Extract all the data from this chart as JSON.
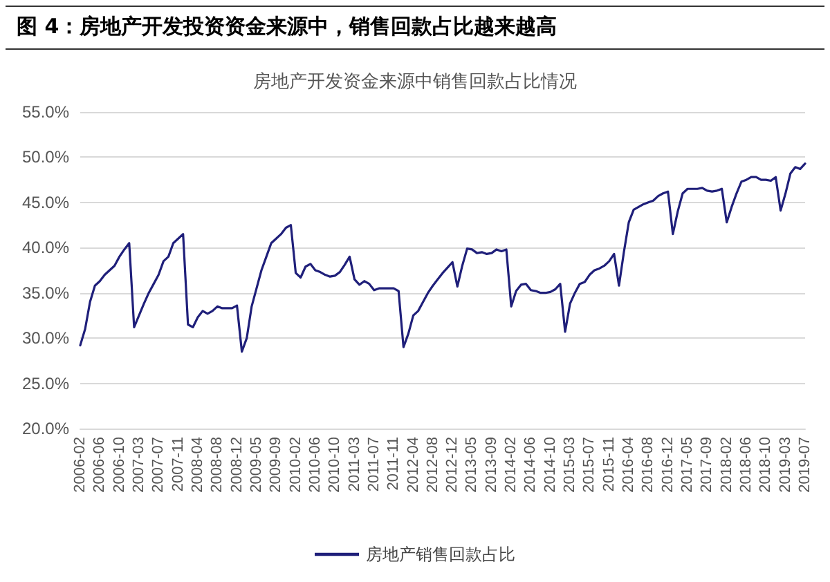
{
  "chart_data": {
    "type": "line",
    "title": "房地产开发资金来源中销售回款占比情况",
    "subtitle": "图 4：房地产开发投资资金来源中，销售回款占比越来越高",
    "categories": [
      "2006-02",
      null,
      null,
      null,
      "2006-06",
      null,
      null,
      null,
      "2006-10",
      null,
      null,
      null,
      "2007-03",
      null,
      null,
      null,
      "2007-07",
      null,
      null,
      null,
      "2007-11",
      null,
      null,
      null,
      "2008-04",
      null,
      null,
      null,
      "2008-08",
      null,
      null,
      null,
      "2008-12",
      null,
      null,
      null,
      "2009-05",
      null,
      null,
      null,
      "2009-09",
      null,
      null,
      null,
      "2010-02",
      null,
      null,
      null,
      "2010-06",
      null,
      null,
      null,
      "2010-10",
      null,
      null,
      null,
      "2011-03",
      null,
      null,
      null,
      "2011-07",
      null,
      null,
      null,
      "2011-11",
      null,
      null,
      null,
      "2012-04",
      null,
      null,
      null,
      "2012-08",
      null,
      null,
      null,
      "2012-12",
      null,
      null,
      null,
      "2013-05",
      null,
      null,
      null,
      "2013-09",
      null,
      null,
      null,
      "2014-02",
      null,
      null,
      null,
      "2014-06",
      null,
      null,
      null,
      "2014-10",
      null,
      null,
      null,
      "2015-03",
      null,
      null,
      null,
      "2015-07",
      null,
      null,
      null,
      "2015-11",
      null,
      null,
      null,
      "2016-04",
      null,
      null,
      null,
      "2016-08",
      null,
      null,
      null,
      "2016-12",
      null,
      null,
      null,
      "2017-05",
      null,
      null,
      null,
      "2017-09",
      null,
      null,
      null,
      "2018-02",
      null,
      null,
      null,
      "2018-06",
      null,
      null,
      null,
      "2018-10",
      null,
      null,
      null,
      "2019-03",
      null,
      null,
      null,
      "2019-07"
    ],
    "series": [
      {
        "name": "房地产销售回款占比",
        "color": "#1f1f7a",
        "values": [
          29.2,
          31.0,
          34.0,
          35.8,
          36.3,
          37.0,
          37.5,
          38.0,
          39.0,
          39.8,
          40.5,
          31.2,
          32.5,
          33.8,
          35.0,
          36.0,
          37.0,
          38.5,
          39.0,
          40.5,
          41.0,
          41.5,
          31.5,
          31.2,
          32.3,
          33.0,
          32.7,
          33.0,
          33.5,
          33.3,
          33.3,
          33.3,
          33.6,
          28.5,
          30.0,
          33.5,
          35.5,
          37.5,
          39.0,
          40.5,
          41.0,
          41.5,
          42.2,
          42.5,
          37.2,
          36.7,
          37.9,
          38.2,
          37.5,
          37.3,
          37.0,
          36.8,
          36.9,
          37.3,
          38.1,
          39.0,
          36.5,
          35.9,
          36.3,
          36.0,
          35.3,
          35.5,
          35.5,
          35.5,
          35.5,
          35.2,
          29.0,
          30.5,
          32.5,
          33.0,
          34.0,
          35.0,
          35.8,
          36.5,
          37.2,
          37.8,
          38.4,
          35.7,
          38.0,
          39.9,
          39.8,
          39.4,
          39.5,
          39.3,
          39.4,
          39.8,
          39.6,
          39.8,
          33.5,
          35.2,
          35.9,
          36.0,
          35.3,
          35.2,
          35.0,
          35.0,
          35.1,
          35.4,
          36.0,
          30.7,
          33.8,
          35.0,
          36.0,
          36.2,
          37.0,
          37.5,
          37.7,
          38.0,
          38.5,
          39.3,
          35.8,
          39.5,
          42.8,
          44.2,
          44.5,
          44.8,
          45.0,
          45.2,
          45.7,
          46.0,
          46.2,
          41.5,
          44.0,
          46.0,
          46.5,
          46.5,
          46.5,
          46.6,
          46.3,
          46.2,
          46.3,
          46.5,
          42.8,
          44.5,
          46.0,
          47.3,
          47.5,
          47.8,
          47.8,
          47.5,
          47.5,
          47.4,
          47.8,
          44.1,
          46.0,
          48.2,
          48.9,
          48.7,
          49.3
        ]
      }
    ],
    "ylim": [
      20,
      55
    ],
    "yticks": [
      {
        "value": 20,
        "label": "20.0%"
      },
      {
        "value": 25,
        "label": "25.0%"
      },
      {
        "value": 30,
        "label": "30.0%"
      },
      {
        "value": 35,
        "label": "35.0%"
      },
      {
        "value": 40,
        "label": "40.0%"
      },
      {
        "value": 45,
        "label": "45.0%"
      },
      {
        "value": 50,
        "label": "50.0%"
      },
      {
        "value": 55,
        "label": "55.0%"
      }
    ],
    "grid": "y",
    "legend": "bottom",
    "marker": "none",
    "line_style": "solid"
  }
}
